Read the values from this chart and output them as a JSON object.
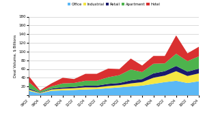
{
  "quarters": [
    "09Q2",
    "09Q4",
    "10Q2",
    "10Q4",
    "11Q2",
    "11Q4",
    "12Q2",
    "12Q4",
    "13Q2",
    "13Q4",
    "14Q2",
    "14Q4",
    "15Q2",
    "15Q4",
    "16Q2",
    "16Q4"
  ],
  "office": [
    10,
    4,
    10,
    11,
    12,
    13,
    14,
    16,
    18,
    20,
    22,
    26,
    30,
    33,
    28,
    32
  ],
  "industrial": [
    3,
    1,
    3,
    4,
    4,
    5,
    4,
    5,
    5,
    7,
    8,
    14,
    15,
    22,
    16,
    18
  ],
  "retail": [
    3,
    1,
    2,
    3,
    3,
    4,
    4,
    5,
    5,
    7,
    7,
    10,
    10,
    12,
    10,
    11
  ],
  "apartment": [
    14,
    3,
    5,
    9,
    9,
    11,
    11,
    15,
    18,
    25,
    16,
    22,
    18,
    28,
    24,
    28
  ],
  "hotel": [
    14,
    2,
    7,
    13,
    9,
    16,
    16,
    20,
    14,
    25,
    15,
    18,
    17,
    42,
    18,
    22
  ],
  "colors": {
    "office": "#5bb8f5",
    "industrial": "#f5e642",
    "retail": "#1a1a6e",
    "apartment": "#4db34d",
    "hotel": "#d93030"
  },
  "ylabel": "Deal Volume, $ Billions",
  "ylim": [
    0,
    180
  ],
  "yticks": [
    0,
    20,
    40,
    60,
    80,
    100,
    120,
    140,
    160,
    180
  ],
  "background_color": "#ffffff",
  "legend_labels": [
    "Office",
    "Industrial",
    "Retail",
    "Apartment",
    "Hotel"
  ],
  "legend_colors": [
    "#5bb8f5",
    "#f5e642",
    "#1a1a6e",
    "#4db34d",
    "#d93030"
  ]
}
